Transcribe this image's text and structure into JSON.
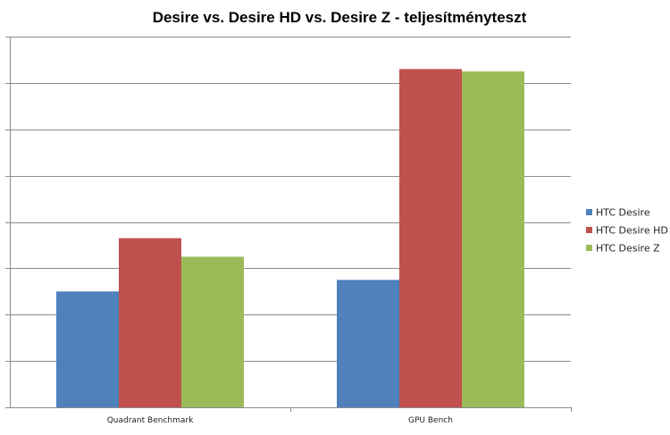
{
  "chart_data": {
    "type": "bar",
    "title": "Desire vs. Desire HD vs. Desire Z - teljesítményteszt",
    "xlabel": "",
    "ylabel": "",
    "categories": [
      "Quadrant Benchmark",
      "GPU Bench"
    ],
    "series": [
      {
        "name": "HTC Desire",
        "color": "#4F81BD",
        "values": [
          2.5,
          2.75
        ]
      },
      {
        "name": "HTC Desire HD",
        "color": "#C0504D",
        "values": [
          3.65,
          7.3
        ]
      },
      {
        "name": "HTC Desire Z",
        "color": "#9BBB59",
        "values": [
          3.25,
          7.25
        ]
      }
    ],
    "ylim": [
      0,
      8
    ],
    "ytick_step": 1,
    "ytick_labels_shown": false,
    "grid": true,
    "legend": "right"
  }
}
